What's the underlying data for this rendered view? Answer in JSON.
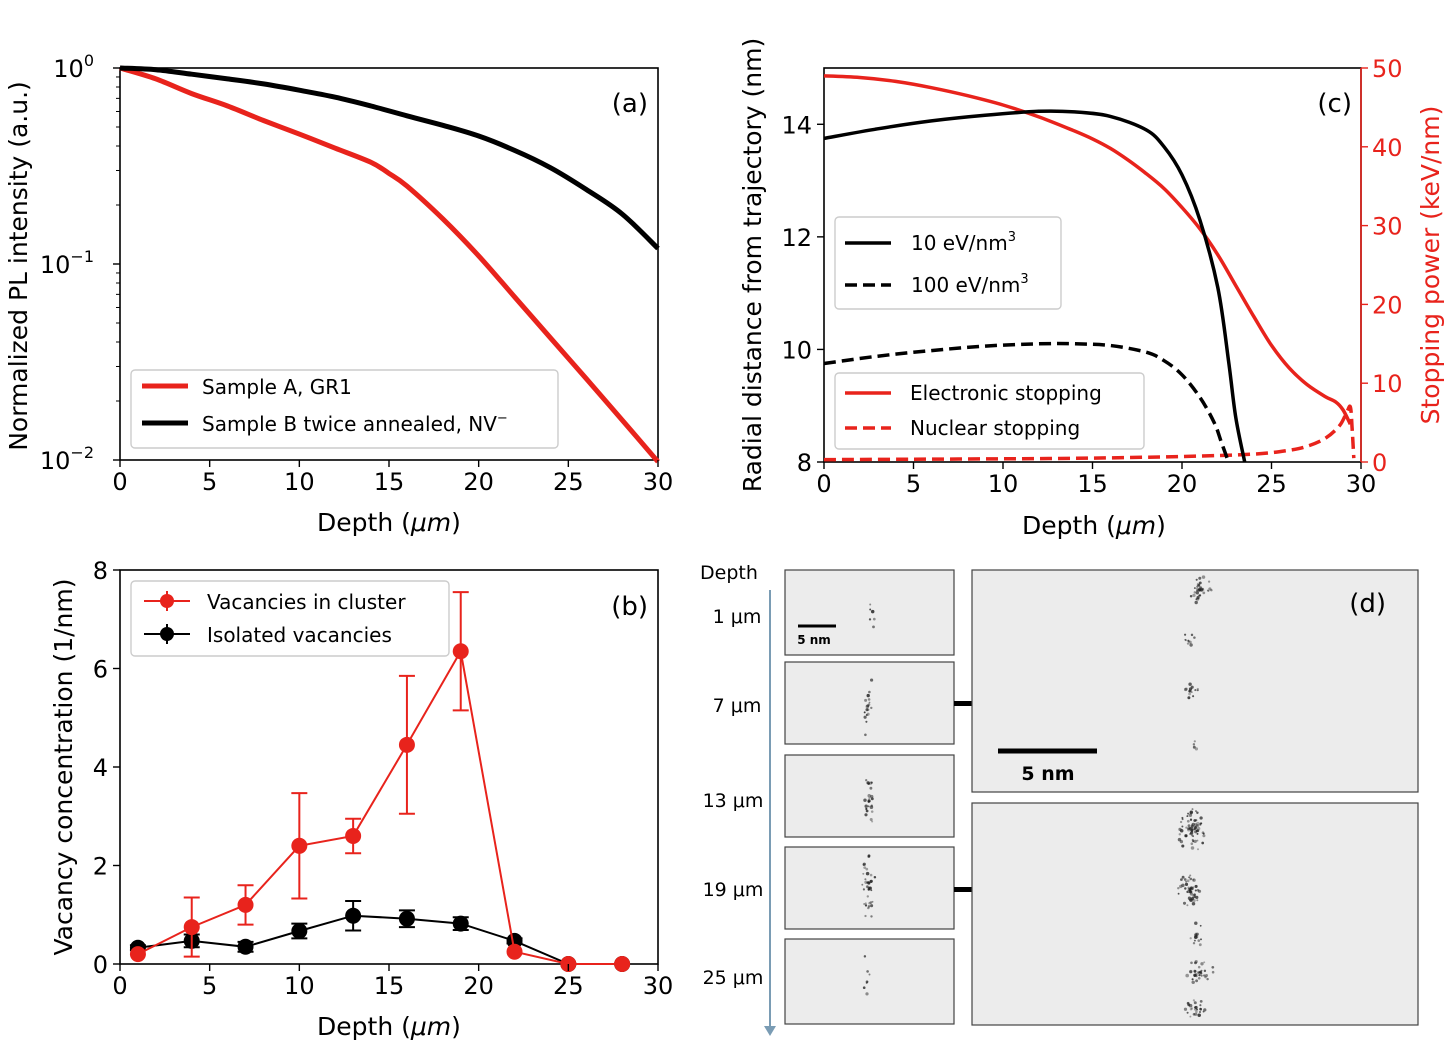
{
  "colors": {
    "red": "#e8231c",
    "black": "#000000",
    "img_bg": "#ececec",
    "panel_border": "#444444",
    "arrow": "#7a9cb4"
  },
  "chart_data": [
    {
      "panel": "(a)",
      "type": "line",
      "xlabel_main": "Depth (",
      "xlabel_unit": "μm",
      "xlabel_close": ")",
      "ylabel": "Normalized PL intensity (a.u.)",
      "yscale": "log",
      "xlim": [
        0,
        30
      ],
      "ylim": [
        0.01,
        1
      ],
      "xticks": [
        "0",
        "5",
        "10",
        "15",
        "20",
        "25",
        "30"
      ],
      "yticks": [
        {
          "base": "10",
          "exp": "0",
          "value": 1
        },
        {
          "base": "10",
          "exp": "−1",
          "value": 0.1
        },
        {
          "base": "10",
          "exp": "−2",
          "value": 0.01
        }
      ],
      "legend_position": "bottom-left",
      "series": [
        {
          "name": "Sample A, GR1",
          "color": "#e8231c",
          "style": "solid",
          "x": [
            0,
            2,
            4,
            6,
            8,
            10,
            12,
            14,
            15,
            16,
            18,
            20,
            22,
            24,
            26,
            28,
            30
          ],
          "y": [
            1.0,
            0.88,
            0.74,
            0.64,
            0.54,
            0.46,
            0.39,
            0.33,
            0.29,
            0.25,
            0.17,
            0.11,
            0.068,
            0.042,
            0.026,
            0.016,
            0.0098
          ]
        },
        {
          "name": "Sample B twice annealed, NV",
          "name_sup": "−",
          "color": "#000000",
          "style": "solid",
          "x": [
            0,
            2,
            4,
            6,
            8,
            10,
            12,
            14,
            16,
            18,
            20,
            22,
            24,
            26,
            28,
            30
          ],
          "y": [
            1.0,
            0.98,
            0.93,
            0.88,
            0.83,
            0.77,
            0.71,
            0.64,
            0.57,
            0.51,
            0.45,
            0.38,
            0.31,
            0.24,
            0.18,
            0.12
          ]
        }
      ]
    },
    {
      "panel": "(b)",
      "type": "line",
      "xlabel_main": "Depth (",
      "xlabel_unit": "μm",
      "xlabel_close": ")",
      "ylabel": "Vacancy concentration (1/nm)",
      "xlim": [
        0,
        30
      ],
      "ylim": [
        0,
        8
      ],
      "xticks": [
        "0",
        "5",
        "10",
        "15",
        "20",
        "25",
        "30"
      ],
      "yticks": [
        "0",
        "2",
        "4",
        "6",
        "8"
      ],
      "legend_position": "top-left",
      "series": [
        {
          "name": "Vacancies in cluster",
          "color": "#e8231c",
          "x": [
            1,
            4,
            7,
            10,
            13,
            16,
            19,
            22,
            25,
            28
          ],
          "y": [
            0.2,
            0.75,
            1.2,
            2.4,
            2.6,
            4.45,
            6.35,
            0.25,
            0.0,
            0.0
          ],
          "err": [
            0.0,
            0.6,
            0.4,
            1.07,
            0.35,
            1.4,
            1.2,
            0.0,
            0.0,
            0.0
          ]
        },
        {
          "name": "Isolated vacancies",
          "color": "#000000",
          "x": [
            1,
            4,
            7,
            10,
            13,
            16,
            19,
            22,
            25,
            28
          ],
          "y": [
            0.33,
            0.47,
            0.35,
            0.67,
            0.98,
            0.92,
            0.82,
            0.47,
            0.0,
            0.0
          ],
          "err": [
            0.05,
            0.13,
            0.1,
            0.15,
            0.3,
            0.17,
            0.13,
            0.05,
            0.0,
            0.0
          ]
        }
      ]
    },
    {
      "panel": "(c)",
      "type": "line",
      "xlabel_main": "Depth (",
      "xlabel_unit": "μm",
      "xlabel_close": ")",
      "ylabel": "Radial distance from trajectory (nm)",
      "ylabel_right": "Stopping power (keV/nm)",
      "xlim": [
        0,
        30
      ],
      "ylim": [
        8,
        15
      ],
      "ylim_right": [
        0,
        50
      ],
      "xticks": [
        "0",
        "5",
        "10",
        "15",
        "20",
        "25",
        "30"
      ],
      "yticks": [
        "8",
        "10",
        "12",
        "14"
      ],
      "yticks_right": [
        "0",
        "10",
        "20",
        "30",
        "40",
        "50"
      ],
      "legend_positions": [
        "center-left",
        "bottom-left"
      ],
      "series_left": [
        {
          "name": "10 eV/nm",
          "name_sup": "3",
          "color": "#000000",
          "style": "solid",
          "x": [
            0,
            3,
            6,
            9,
            12,
            14,
            16,
            18,
            19,
            20,
            21,
            22,
            22.6,
            23.0,
            23.5
          ],
          "y": [
            13.75,
            13.92,
            14.06,
            14.16,
            14.23,
            14.22,
            14.14,
            13.9,
            13.6,
            13.1,
            12.3,
            11.1,
            9.8,
            8.8,
            8.0
          ]
        },
        {
          "name": "100 eV/nm",
          "name_sup": "3",
          "color": "#000000",
          "style": "dashed",
          "x": [
            0,
            3,
            6,
            9,
            12,
            14,
            16,
            18,
            19,
            20,
            21,
            21.8,
            22.2,
            22.6
          ],
          "y": [
            9.75,
            9.88,
            9.98,
            10.06,
            10.1,
            10.1,
            10.07,
            9.95,
            9.8,
            9.55,
            9.15,
            8.7,
            8.35,
            8.0
          ]
        }
      ],
      "series_right": [
        {
          "name": "Electronic stopping",
          "color": "#e8231c",
          "style": "solid",
          "x": [
            0,
            2,
            4,
            6,
            8,
            10,
            12,
            14,
            15,
            16,
            17,
            18,
            19,
            20,
            21,
            22,
            23,
            24,
            25,
            26,
            27,
            28,
            28.6,
            29.0,
            29.4
          ],
          "y": [
            49.0,
            48.8,
            48.3,
            47.5,
            46.5,
            45.3,
            43.8,
            42.0,
            41.0,
            39.8,
            38.3,
            36.6,
            34.7,
            32.3,
            29.6,
            26.3,
            22.4,
            18.5,
            14.8,
            11.9,
            9.8,
            8.3,
            7.6,
            6.6,
            4.8
          ]
        },
        {
          "name": "Nuclear stopping",
          "color": "#e8231c",
          "style": "dashed",
          "x": [
            0,
            5,
            10,
            15,
            20,
            24,
            26,
            27,
            28,
            28.8,
            29.2,
            29.4,
            29.5,
            29.6
          ],
          "y": [
            0.3,
            0.35,
            0.4,
            0.5,
            0.7,
            1.0,
            1.5,
            2.0,
            3.0,
            4.6,
            6.3,
            7.0,
            4.5,
            0.5
          ]
        }
      ]
    }
  ],
  "panel_d": {
    "label": "(d)",
    "depth_title": "Depth",
    "depths": [
      "1 μm",
      "7 μm",
      "13 μm",
      "19 μm",
      "25 μm"
    ],
    "scale_small": "5 nm",
    "scale_large": "5 nm"
  }
}
